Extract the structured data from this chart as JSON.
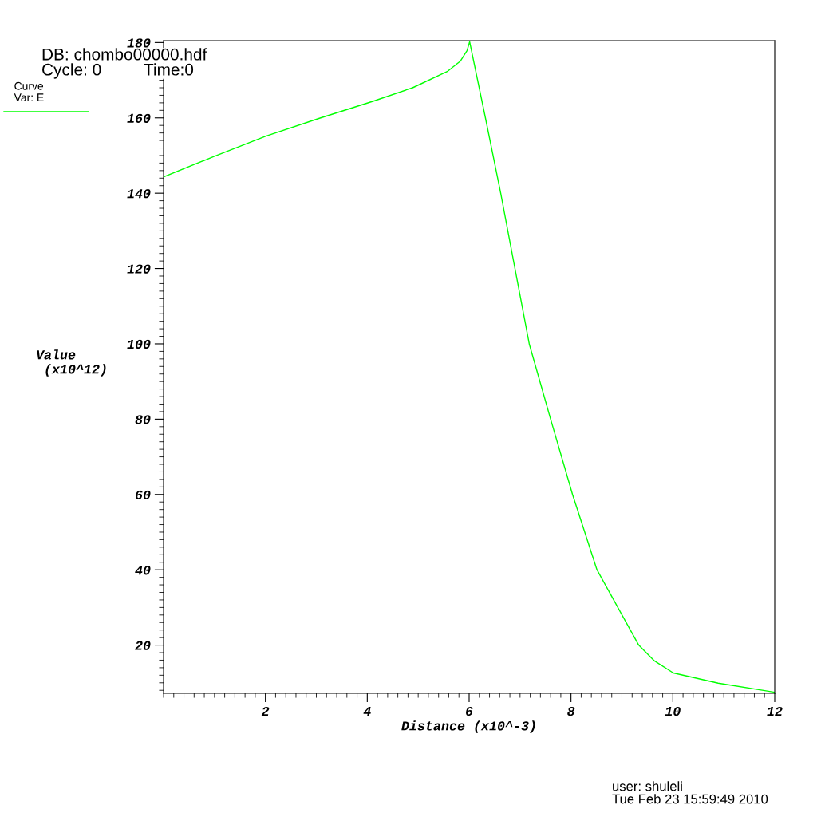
{
  "chart_data": {
    "type": "line",
    "xlabel": "Distance (x10^-3)",
    "ylabel": "Value (x10^12)",
    "legend_title": "Curve",
    "legend": "top left",
    "grid": false,
    "marker": "none",
    "line_style": "solid",
    "xlim": [
      0,
      12
    ],
    "ylim": [
      7.2,
      180.5
    ],
    "xticks": [
      2,
      4,
      6,
      8,
      10,
      12
    ],
    "yticks": [
      20,
      40,
      60,
      80,
      100,
      120,
      140,
      160,
      180
    ],
    "series": [
      {
        "name": "Var: E",
        "color": "#00ff00",
        "x": [
          0,
          0.98,
          2.02,
          3.06,
          4.11,
          4.89,
          5.57,
          5.83,
          5.96,
          6.01,
          6.32,
          6.62,
          6.9,
          7.18,
          7.6,
          8.03,
          8.51,
          9.33,
          9.64,
          10.01,
          10.89,
          12
        ],
        "values": [
          144.3,
          149.7,
          155.2,
          159.9,
          164.4,
          168.0,
          172.3,
          175.1,
          177.9,
          180.2,
          160,
          140,
          120,
          100,
          80,
          60,
          40,
          20,
          15.8,
          12.6,
          9.9,
          7.5
        ]
      }
    ],
    "annotations": [
      "DB: chombo00000.hdf",
      "Cycle: 0",
      "Time:0",
      "user: shuleli",
      "Tue Feb 23 15:59:49 2010"
    ]
  }
}
